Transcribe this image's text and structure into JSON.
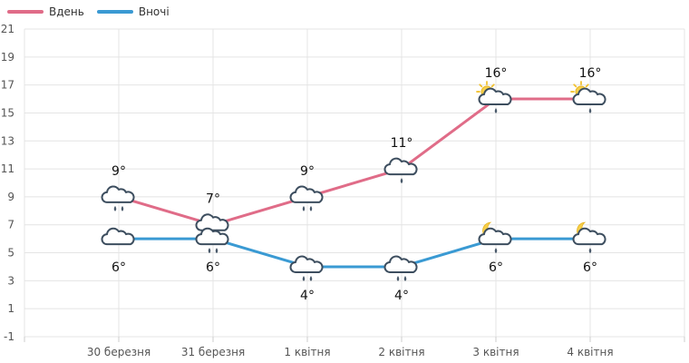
{
  "legend": {
    "day_label": "Вдень",
    "night_label": "Вночі"
  },
  "chart_data": {
    "type": "line",
    "categories": [
      "30 березня",
      "31 березня",
      "1 квітня",
      "2 квітня",
      "3 квітня",
      "4 квітня"
    ],
    "y_ticks": [
      "21",
      "19",
      "17",
      "15",
      "13",
      "11",
      "9",
      "7",
      "5",
      "3",
      "1",
      "-1"
    ],
    "ylim": [
      -1,
      21
    ],
    "grid": true,
    "legend_position": "top-left",
    "series": [
      {
        "name": "Вдень",
        "color": "#e06c88",
        "values": [
          9,
          7,
          9,
          11,
          16,
          16
        ],
        "labels": [
          "9°",
          "7°",
          "9°",
          "11°",
          "16°",
          "16°"
        ],
        "icons": [
          "cloud-rain-heavy",
          "cloud-rain-heavy",
          "cloud-rain-heavy",
          "cloud-rain-light",
          "sun-cloud-rain-light",
          "sun-cloud-rain-light"
        ]
      },
      {
        "name": "Вночі",
        "color": "#3a9ad3",
        "values": [
          6,
          6,
          4,
          4,
          6,
          6
        ],
        "labels": [
          "6°",
          "6°",
          "4°",
          "4°",
          "6°",
          "6°"
        ],
        "icons": [
          "cloud",
          "cloud-rain-heavy",
          "cloud-rain-heavy",
          "cloud-rain-heavy",
          "moon-cloud-rain-light",
          "moon-cloud-rain-light"
        ]
      }
    ]
  }
}
